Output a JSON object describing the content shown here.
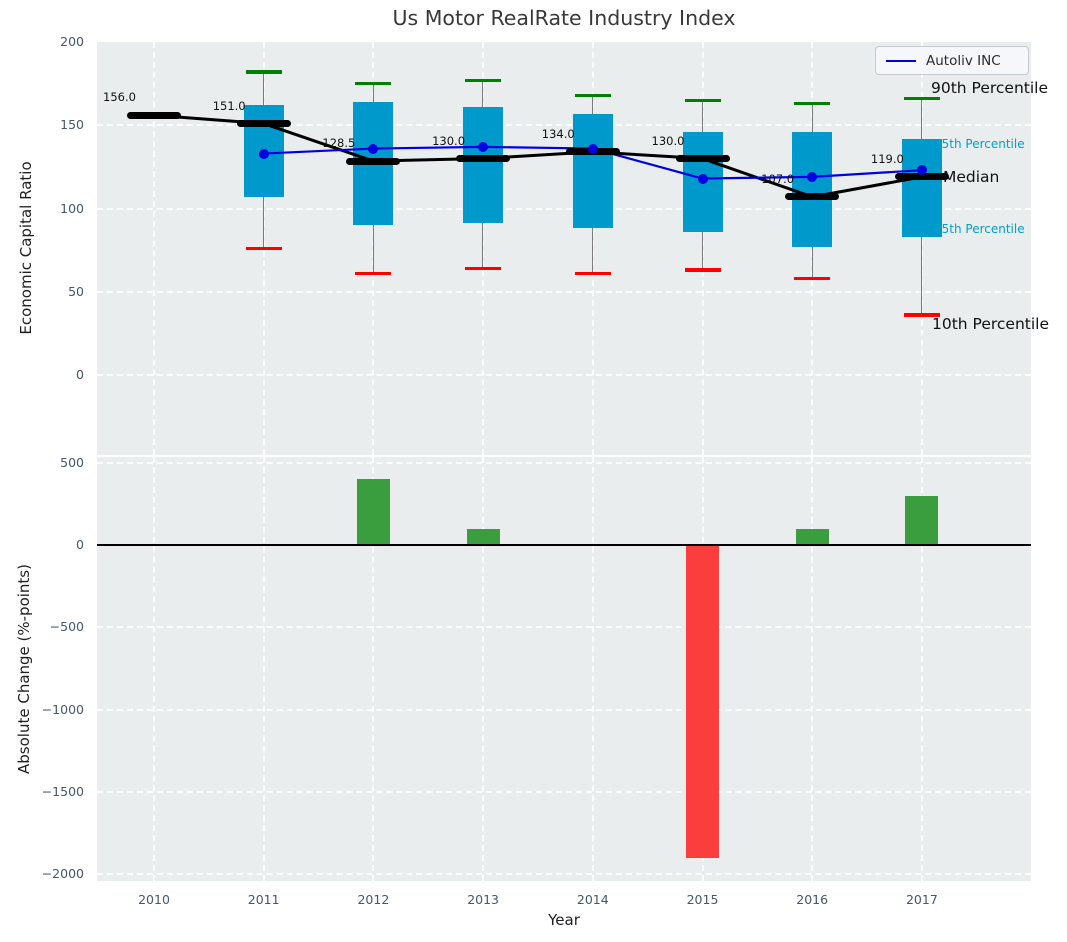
{
  "title": "Us Motor RealRate Industry Index",
  "legend": {
    "label": "Autoliv INC",
    "line_icon": "blue-line-sample"
  },
  "axes": {
    "top_ylabel": "Economic Capital Ratio",
    "bottom_ylabel": "Absolute Change (%-points)",
    "xlabel": "Year",
    "top_ytick_labels": [
      "200",
      "150",
      "100",
      "50",
      "0"
    ],
    "top_ytick_values": [
      200,
      150,
      100,
      50,
      0
    ],
    "bottom_ytick_labels": [
      "500",
      "0",
      "−500",
      "−1000",
      "−1500",
      "−2000"
    ],
    "bottom_ytick_values": [
      500,
      0,
      -500,
      -1000,
      -1500,
      -2000
    ],
    "xtick_labels": [
      "2010",
      "2011",
      "2012",
      "2013",
      "2014",
      "2015",
      "2016",
      "2017"
    ]
  },
  "annotations": {
    "p90_label": "90th Percentile",
    "p75_label": "75th Percentile",
    "median_label": "Median",
    "p25_label": "25th Percentile",
    "p10_label": "10th Percentile"
  },
  "colors": {
    "panel_bg": "#e9edee",
    "box_fill": "#0099cc",
    "cap_90th": "#008000",
    "cap_10th": "#ff0000",
    "whisker": "#7a7a7a",
    "median_line": "#000000",
    "company_line": "#0000e0",
    "bar_positive": "#3a9e3e",
    "bar_negative": "#fa3e3e",
    "tick_text": "#46586a",
    "percentile_text_cyan": "#00a0cc"
  },
  "chart_data": [
    {
      "type": "boxplot_with_lines",
      "title": "Us Motor RealRate Industry Index",
      "xlabel": "Year",
      "ylabel": "Economic Capital Ratio",
      "ylim": [
        -48,
        200
      ],
      "grid": true,
      "legend_position": "upper right",
      "categories": [
        "2010",
        "2011",
        "2012",
        "2013",
        "2014",
        "2015",
        "2016",
        "2017"
      ],
      "median": [
        156.0,
        151.0,
        128.5,
        130.0,
        134.0,
        130.0,
        107.0,
        119.0
      ],
      "median_labels": [
        "156.0",
        "151.0",
        "128.5",
        "130.0",
        "134.0",
        "130.0",
        "107.0",
        "119.0"
      ],
      "p10": [
        null,
        76,
        61,
        64,
        61,
        63,
        58,
        36
      ],
      "p25": [
        null,
        107,
        90,
        91,
        88,
        86,
        77,
        83
      ],
      "p75": [
        null,
        162,
        164,
        161,
        157,
        146,
        146,
        142
      ],
      "p90": [
        null,
        182,
        175,
        177,
        168,
        165,
        163,
        166
      ],
      "series": [
        {
          "name": "Autoliv INC",
          "values": [
            null,
            133,
            136,
            137,
            136,
            118,
            119,
            123
          ]
        }
      ]
    },
    {
      "type": "bar",
      "ylabel": "Absolute Change (%-points)",
      "ylim": [
        -2042,
        535
      ],
      "grid": true,
      "categories": [
        "2010",
        "2011",
        "2012",
        "2013",
        "2014",
        "2015",
        "2016",
        "2017"
      ],
      "values": [
        0,
        0,
        400,
        100,
        0,
        -1900,
        100,
        300
      ]
    }
  ]
}
